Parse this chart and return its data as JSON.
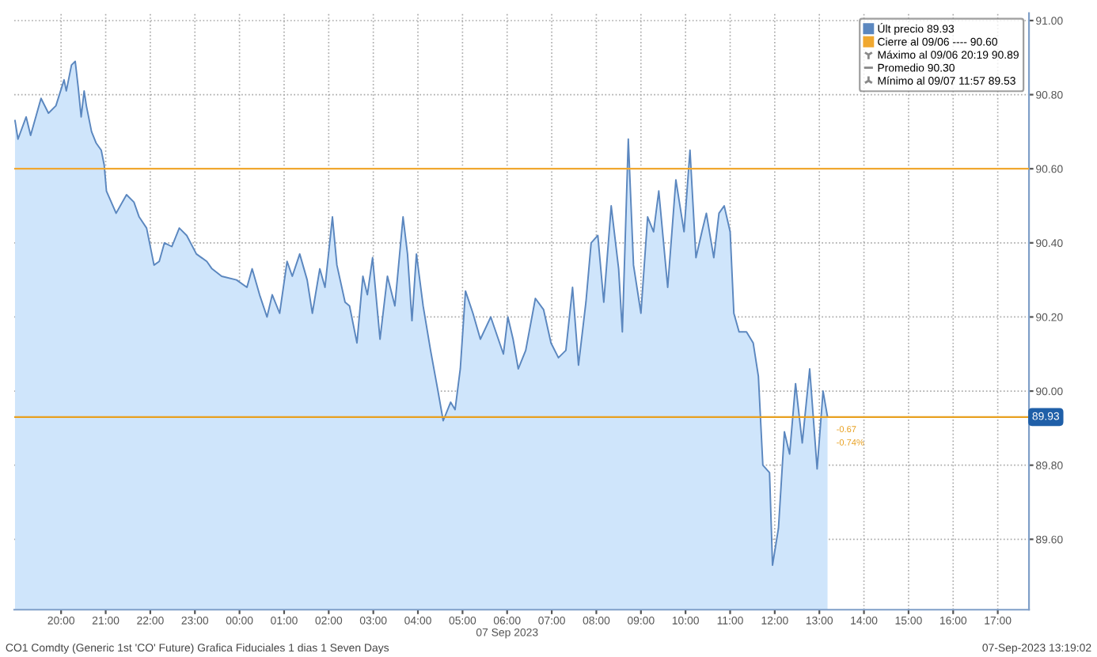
{
  "chart_data": {
    "type": "area",
    "x": [
      "2023-09-06T18:58",
      "2023-09-06T19:02",
      "2023-09-06T19:13",
      "2023-09-06T19:19",
      "2023-09-06T19:33",
      "2023-09-06T19:43",
      "2023-09-06T19:53",
      "2023-09-06T20:04",
      "2023-09-06T20:07",
      "2023-09-06T20:14",
      "2023-09-06T20:19",
      "2023-09-06T20:23",
      "2023-09-06T20:27",
      "2023-09-06T20:31",
      "2023-09-06T20:34",
      "2023-09-06T20:41",
      "2023-09-06T20:47",
      "2023-09-06T20:54",
      "2023-09-06T20:58",
      "2023-09-06T21:01",
      "2023-09-06T21:14",
      "2023-09-06T21:28",
      "2023-09-06T21:38",
      "2023-09-06T21:45",
      "2023-09-06T21:55",
      "2023-09-06T22:05",
      "2023-09-06T22:12",
      "2023-09-06T22:19",
      "2023-09-06T22:29",
      "2023-09-06T22:39",
      "2023-09-06T22:49",
      "2023-09-06T23:02",
      "2023-09-06T23:16",
      "2023-09-06T23:23",
      "2023-09-06T23:36",
      "2023-09-06T23:56",
      "2023-09-07T00:10",
      "2023-09-07T00:17",
      "2023-09-07T00:27",
      "2023-09-07T00:37",
      "2023-09-07T00:44",
      "2023-09-07T00:54",
      "2023-09-07T01:04",
      "2023-09-07T01:11",
      "2023-09-07T01:21",
      "2023-09-07T01:31",
      "2023-09-07T01:38",
      "2023-09-07T01:48",
      "2023-09-07T01:55",
      "2023-09-07T02:05",
      "2023-09-07T02:11",
      "2023-09-07T02:22",
      "2023-09-07T02:28",
      "2023-09-07T02:38",
      "2023-09-07T02:46",
      "2023-09-07T02:52",
      "2023-09-07T02:59",
      "2023-09-07T03:09",
      "2023-09-07T03:19",
      "2023-09-07T03:29",
      "2023-09-07T03:40",
      "2023-09-07T03:46",
      "2023-09-07T03:52",
      "2023-09-07T03:58",
      "2023-09-07T04:07",
      "2023-09-07T04:17",
      "2023-09-07T04:27",
      "2023-09-07T04:34",
      "2023-09-07T04:44",
      "2023-09-07T04:50",
      "2023-09-07T04:57",
      "2023-09-07T05:04",
      "2023-09-07T05:14",
      "2023-09-07T05:24",
      "2023-09-07T05:38",
      "2023-09-07T05:55",
      "2023-09-07T06:01",
      "2023-09-07T06:08",
      "2023-09-07T06:15",
      "2023-09-07T06:25",
      "2023-09-07T06:38",
      "2023-09-07T06:49",
      "2023-09-07T06:59",
      "2023-09-07T07:09",
      "2023-09-07T07:19",
      "2023-09-07T07:28",
      "2023-09-07T07:36",
      "2023-09-07T07:46",
      "2023-09-07T07:53",
      "2023-09-07T08:02",
      "2023-09-07T08:10",
      "2023-09-07T08:20",
      "2023-09-07T08:30",
      "2023-09-07T08:35",
      "2023-09-07T08:43",
      "2023-09-07T08:50",
      "2023-09-07T09:00",
      "2023-09-07T09:09",
      "2023-09-07T09:17",
      "2023-09-07T09:24",
      "2023-09-07T09:36",
      "2023-09-07T09:47",
      "2023-09-07T09:58",
      "2023-09-07T10:06",
      "2023-09-07T10:14",
      "2023-09-07T10:22",
      "2023-09-07T10:28",
      "2023-09-07T10:38",
      "2023-09-07T10:45",
      "2023-09-07T10:52",
      "2023-09-07T11:00",
      "2023-09-07T11:05",
      "2023-09-07T11:12",
      "2023-09-07T11:22",
      "2023-09-07T11:31",
      "2023-09-07T11:38",
      "2023-09-07T11:44",
      "2023-09-07T11:53",
      "2023-09-07T11:57",
      "2023-09-07T12:05",
      "2023-09-07T12:13",
      "2023-09-07T12:20",
      "2023-09-07T12:28",
      "2023-09-07T12:37",
      "2023-09-07T12:47",
      "2023-09-07T12:57",
      "2023-09-07T13:05",
      "2023-09-07T13:11"
    ],
    "series": [
      {
        "name": "Últ precio 89.93",
        "color": "#5b87bf",
        "values": [
          90.73,
          90.68,
          90.74,
          90.69,
          90.79,
          90.75,
          90.77,
          90.84,
          90.81,
          90.88,
          90.89,
          90.82,
          90.74,
          90.81,
          90.77,
          90.7,
          90.67,
          90.65,
          90.61,
          90.54,
          90.48,
          90.53,
          90.51,
          90.47,
          90.44,
          90.34,
          90.35,
          90.4,
          90.39,
          90.44,
          90.42,
          90.37,
          90.35,
          90.33,
          90.31,
          90.3,
          90.28,
          90.33,
          90.26,
          90.2,
          90.26,
          90.21,
          90.35,
          90.31,
          90.37,
          90.3,
          90.21,
          90.33,
          90.28,
          90.47,
          90.34,
          90.24,
          90.23,
          90.13,
          90.31,
          90.26,
          90.36,
          90.14,
          90.31,
          90.23,
          90.47,
          90.37,
          90.19,
          90.37,
          90.23,
          90.11,
          90.0,
          89.92,
          89.97,
          89.95,
          90.06,
          90.27,
          90.21,
          90.14,
          90.2,
          90.1,
          90.2,
          90.14,
          90.06,
          90.11,
          90.25,
          90.22,
          90.13,
          90.09,
          90.11,
          90.28,
          90.07,
          90.24,
          90.4,
          90.42,
          90.24,
          90.5,
          90.33,
          90.16,
          90.68,
          90.34,
          90.21,
          90.47,
          90.43,
          90.54,
          90.28,
          90.57,
          90.43,
          90.65,
          90.36,
          90.43,
          90.48,
          90.36,
          90.48,
          90.5,
          90.43,
          90.21,
          90.16,
          90.16,
          90.13,
          90.04,
          89.8,
          89.78,
          89.53,
          89.63,
          89.89,
          89.83,
          90.02,
          89.86,
          90.06,
          89.79,
          90.0,
          89.93
        ]
      }
    ],
    "xlim": [
      "2023-09-06T18:57",
      "2023-09-07T17:42"
    ],
    "xticks": [
      {
        "value": "2023-09-06T20:00",
        "label": "20:00"
      },
      {
        "value": "2023-09-06T21:00",
        "label": "21:00"
      },
      {
        "value": "2023-09-06T22:00",
        "label": "22:00"
      },
      {
        "value": "2023-09-06T23:00",
        "label": "23:00"
      },
      {
        "value": "2023-09-07T00:00",
        "label": "00:00"
      },
      {
        "value": "2023-09-07T01:00",
        "label": "01:00"
      },
      {
        "value": "2023-09-07T02:00",
        "label": "02:00"
      },
      {
        "value": "2023-09-07T03:00",
        "label": "03:00"
      },
      {
        "value": "2023-09-07T04:00",
        "label": "04:00"
      },
      {
        "value": "2023-09-07T05:00",
        "label": "05:00"
      },
      {
        "value": "2023-09-07T06:00",
        "label": "06:00\n07 Sep 2023"
      },
      {
        "value": "2023-09-07T07:00",
        "label": "07:00"
      },
      {
        "value": "2023-09-07T08:00",
        "label": "08:00"
      },
      {
        "value": "2023-09-07T09:00",
        "label": "09:00"
      },
      {
        "value": "2023-09-07T10:00",
        "label": "10:00"
      },
      {
        "value": "2023-09-07T11:00",
        "label": "11:00"
      },
      {
        "value": "2023-09-07T12:00",
        "label": "12:00"
      },
      {
        "value": "2023-09-07T13:00",
        "label": "13:00"
      },
      {
        "value": "2023-09-07T14:00",
        "label": "14:00"
      },
      {
        "value": "2023-09-07T15:00",
        "label": "15:00"
      },
      {
        "value": "2023-09-07T16:00",
        "label": "16:00"
      },
      {
        "value": "2023-09-07T17:00",
        "label": "17:00"
      }
    ],
    "ylim": [
      89.41,
      91.02
    ],
    "yticks": [
      {
        "value": 89.6,
        "label": "89.60"
      },
      {
        "value": 89.8,
        "label": "89.80"
      },
      {
        "value": 90.0,
        "label": "90.00"
      },
      {
        "value": 90.2,
        "label": "90.20"
      },
      {
        "value": 90.4,
        "label": "90.40"
      },
      {
        "value": 90.6,
        "label": "90.60"
      },
      {
        "value": 90.8,
        "label": "90.80"
      },
      {
        "value": 91.0,
        "label": "91.00"
      }
    ],
    "ref_lines": [
      {
        "axis": "y",
        "value": 90.6,
        "label": "Cierre al 09/06 ---- 90.60",
        "color": "#f0a830"
      },
      {
        "axis": "y",
        "value": 89.93,
        "label": "89.93",
        "color": "#e8a020"
      }
    ],
    "annotations": [
      "Máximo al 09/06 20:19 90.89",
      "Promedio 90.30",
      "Mínimo al 09/07 11:57 89.53",
      "-0.67",
      "-0.74%",
      "CO1 Comdty (Generic 1st 'CO' Future) Grafica Fiduciales 1 dias 1 Seven Days",
      "07-Sep-2023 13:19:02"
    ],
    "grid": true,
    "legend": "top right"
  }
}
